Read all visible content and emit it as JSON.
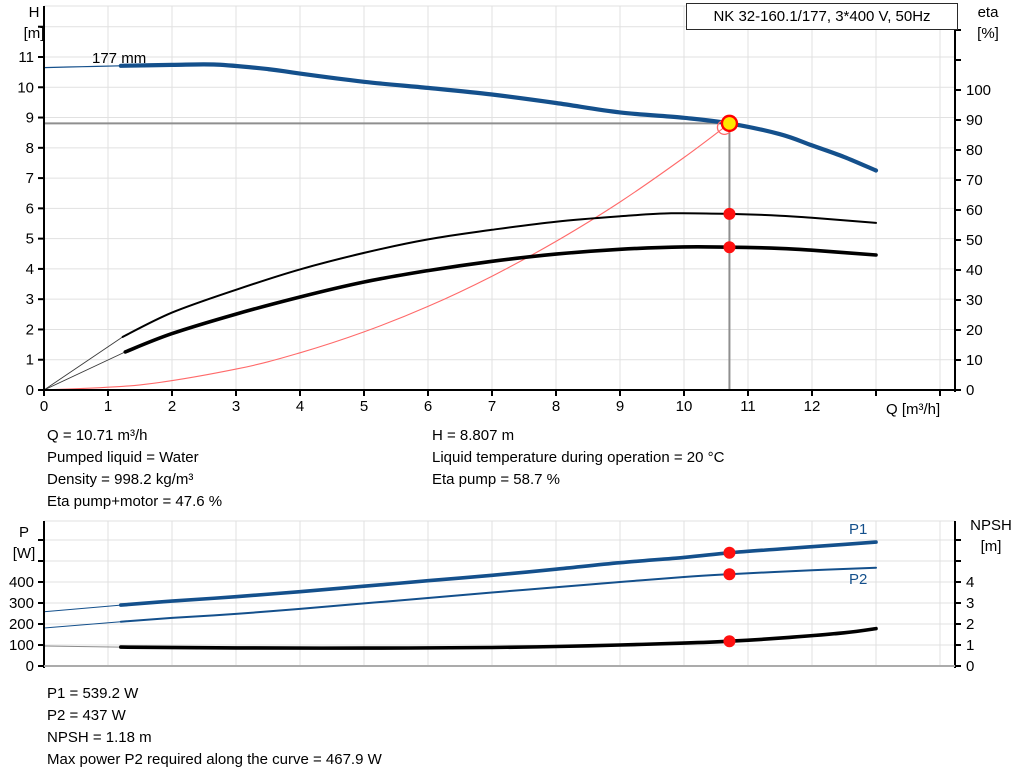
{
  "header": {
    "title": "NK 32-160.1/177, 3*400 V, 50Hz"
  },
  "top_chart": {
    "impeller_label": "177 mm",
    "left_axis_name": [
      "H",
      "[m]"
    ],
    "right_axis_name": [
      "eta",
      "[%]"
    ],
    "x_axis_name": "Q [m³/h]",
    "left_tick_labels": [
      "0",
      "1",
      "2",
      "3",
      "4",
      "5",
      "6",
      "7",
      "8",
      "9",
      "10",
      "11"
    ],
    "right_tick_labels": [
      "0",
      "10",
      "20",
      "30",
      "40",
      "50",
      "60",
      "70",
      "80",
      "90",
      "100"
    ],
    "x_tick_labels": [
      "0",
      "1",
      "2",
      "3",
      "4",
      "5",
      "6",
      "7",
      "8",
      "9",
      "10",
      "11",
      "12"
    ]
  },
  "top_info": {
    "col1": [
      "Q = 10.71 m³/h",
      "Pumped liquid = Water",
      "Density = 998.2 kg/m³",
      "Eta pump+motor = 47.6 %"
    ],
    "col2": [
      "H = 8.807 m",
      "Liquid temperature during operation = 20 °C",
      "Eta pump = 58.7 %"
    ]
  },
  "bottom_chart": {
    "left_axis_name": [
      "P",
      "[W]"
    ],
    "right_axis_name": [
      "NPSH",
      "[m]"
    ],
    "p1_label": "P1",
    "p2_label": "P2",
    "left_tick_labels": [
      "0",
      "100",
      "200",
      "300",
      "400"
    ],
    "right_tick_labels": [
      "0",
      "1",
      "2",
      "3",
      "4"
    ]
  },
  "bottom_info": [
    "P1 = 539.2 W",
    "P2 = 437 W",
    "NPSH = 1.18 m",
    "Max power P2 required along the curve = 467.9 W"
  ],
  "colors": {
    "curve_blue": "#14508C",
    "marker_red": "#FF1010",
    "op_yellow": "#FFE600",
    "op_ring_red": "#FF0000",
    "system_red": "#FF6A6A",
    "grid": "#E1E1E1",
    "crosshair": "#8F8F8F",
    "bottom_axis_gray": "#ABABAB",
    "lead_in_gray": "#3A3A3A"
  },
  "chart_data": [
    {
      "type": "line",
      "title": "NK 32-160.1/177, 3*400 V, 50Hz",
      "xlabel": "Q [m³/h]",
      "ylabel_left": "H [m]",
      "ylabel_right": "eta [%]",
      "xlim": [
        0,
        14.25
      ],
      "ylim_left": [
        0,
        12.7
      ],
      "ylim_right": [
        0,
        127
      ],
      "grid": true,
      "operating_point": {
        "Q": 10.71,
        "H": 8.807,
        "eta_pump": 58.7,
        "eta_pump_motor": 47.6
      },
      "crosshair": {
        "q": 10.71,
        "v": 8.807
      },
      "series": [
        {
          "name": "head-curve-lead-in",
          "axis": "left",
          "color": "#14508C",
          "width": 1.2,
          "points": [
            [
              0,
              10.65
            ],
            [
              0.6,
              10.68
            ],
            [
              1.2,
              10.71
            ]
          ]
        },
        {
          "name": "system-curve",
          "axis": "left",
          "color": "#FF6A6A",
          "width": 1.1,
          "points": [
            [
              0,
              0
            ],
            [
              1.5,
              0.17
            ],
            [
              3,
              0.69
            ],
            [
              4,
              1.23
            ],
            [
              5,
              1.92
            ],
            [
              6,
              2.76
            ],
            [
              7,
              3.76
            ],
            [
              8,
              4.91
            ],
            [
              9,
              6.21
            ],
            [
              10,
              7.68
            ],
            [
              10.71,
              8.807
            ]
          ]
        },
        {
          "name": "eta-pump-lead-in",
          "axis": "right",
          "color": "#3A3A3A",
          "width": 0.9,
          "points": [
            [
              0,
              0
            ],
            [
              1.23,
              17.7
            ]
          ]
        },
        {
          "name": "eta-pump-motor-lead-in",
          "axis": "right",
          "color": "#3A3A3A",
          "width": 0.9,
          "points": [
            [
              0,
              0
            ],
            [
              1.27,
              12.7
            ]
          ]
        },
        {
          "name": "eta-pump-curve",
          "axis": "right",
          "color": "#000000",
          "width": 2,
          "points": [
            [
              1.23,
              17.7
            ],
            [
              2,
              25.8
            ],
            [
              3,
              33.4
            ],
            [
              4,
              40.2
            ],
            [
              5,
              45.7
            ],
            [
              6,
              50.2
            ],
            [
              7,
              53.4
            ],
            [
              8,
              56.1
            ],
            [
              9,
              57.9
            ],
            [
              9.8,
              58.9
            ],
            [
              10.71,
              58.7
            ],
            [
              11.5,
              58.1
            ],
            [
              12,
              57.4
            ],
            [
              13,
              55.7
            ]
          ]
        },
        {
          "name": "eta-pump-motor-curve",
          "axis": "right",
          "color": "#000000",
          "width": 3.6,
          "points": [
            [
              1.27,
              12.7
            ],
            [
              2,
              18.8
            ],
            [
              3,
              25.3
            ],
            [
              4,
              31
            ],
            [
              5,
              36
            ],
            [
              6,
              39.8
            ],
            [
              7,
              42.9
            ],
            [
              8,
              45.3
            ],
            [
              9,
              46.9
            ],
            [
              10,
              47.7
            ],
            [
              10.71,
              47.6
            ],
            [
              11.5,
              47.2
            ],
            [
              12,
              46.6
            ],
            [
              13,
              45
            ]
          ]
        },
        {
          "name": "head-curve-177mm",
          "axis": "left",
          "color": "#14508C",
          "width": 4.2,
          "points": [
            [
              1.2,
              10.71
            ],
            [
              2,
              10.74
            ],
            [
              2.7,
              10.75
            ],
            [
              3.5,
              10.6
            ],
            [
              4,
              10.45
            ],
            [
              5,
              10.18
            ],
            [
              6,
              9.98
            ],
            [
              7,
              9.76
            ],
            [
              8,
              9.48
            ],
            [
              9,
              9.17
            ],
            [
              10,
              8.99
            ],
            [
              10.71,
              8.807
            ],
            [
              11.5,
              8.45
            ],
            [
              12,
              8.08
            ],
            [
              12.5,
              7.7
            ],
            [
              13,
              7.25
            ]
          ]
        }
      ],
      "markers": [
        {
          "name": "operating-point",
          "q": 10.71,
          "v": 8.807,
          "axis": "left",
          "kind": "op"
        },
        {
          "name": "eta-pump-duty-dot",
          "q": 10.71,
          "v": 58.7,
          "axis": "right",
          "kind": "dot"
        },
        {
          "name": "eta-pump-motor-duty-dot",
          "q": 10.71,
          "v": 47.6,
          "axis": "right",
          "kind": "dot"
        }
      ]
    },
    {
      "type": "line",
      "title": "Power and NPSH curves",
      "xlabel": "Q [m³/h]",
      "ylabel_left": "P [W]",
      "ylabel_right": "NPSH [m]",
      "xlim": [
        0,
        14.25
      ],
      "ylim_left": [
        0,
        690
      ],
      "ylim_right": [
        0,
        6.9
      ],
      "grid": true,
      "duty_values": {
        "P1_W": 539.2,
        "P2_W": 437,
        "NPSH_m": 1.18,
        "max_P2_along_curve_W": 467.9
      },
      "series": [
        {
          "name": "p1-curve-lead-in",
          "axis": "left",
          "color": "#14508C",
          "width": 1,
          "points": [
            [
              0,
              258
            ],
            [
              1.2,
              290
            ]
          ]
        },
        {
          "name": "p2-curve-lead-in",
          "axis": "left",
          "color": "#14508C",
          "width": 1,
          "points": [
            [
              0,
              181
            ],
            [
              1.2,
              211
            ]
          ]
        },
        {
          "name": "npsh-curve-lead-in",
          "axis": "right",
          "color": "#8C8C8C",
          "width": 1,
          "points": [
            [
              0,
              0.95
            ],
            [
              1.2,
              0.9
            ]
          ]
        },
        {
          "name": "p1-curve",
          "axis": "left",
          "color": "#14508C",
          "width": 3.6,
          "points": [
            [
              1.2,
              290
            ],
            [
              2,
              309
            ],
            [
              3,
              330
            ],
            [
              4,
              354
            ],
            [
              5,
              380
            ],
            [
              6,
              406
            ],
            [
              7,
              432
            ],
            [
              8,
              461
            ],
            [
              9,
              492
            ],
            [
              10,
              517
            ],
            [
              10.71,
              539.2
            ],
            [
              11.5,
              557
            ],
            [
              12.5,
              579
            ],
            [
              13,
              590
            ]
          ]
        },
        {
          "name": "p2-curve",
          "axis": "left",
          "color": "#14508C",
          "width": 2,
          "points": [
            [
              1.2,
              211
            ],
            [
              2,
              229
            ],
            [
              3,
              248
            ],
            [
              4,
              272
            ],
            [
              5,
              298
            ],
            [
              6,
              324
            ],
            [
              7,
              350
            ],
            [
              8,
              375
            ],
            [
              9,
              400
            ],
            [
              10,
              424
            ],
            [
              10.71,
              437
            ],
            [
              12,
              456
            ],
            [
              13,
              467.9
            ]
          ]
        },
        {
          "name": "npsh-curve",
          "axis": "right",
          "color": "#000000",
          "width": 3.6,
          "points": [
            [
              1.2,
              0.9
            ],
            [
              3,
              0.86
            ],
            [
              5,
              0.85
            ],
            [
              7,
              0.88
            ],
            [
              8,
              0.93
            ],
            [
              9,
              1
            ],
            [
              10,
              1.09
            ],
            [
              10.71,
              1.18
            ],
            [
              11.5,
              1.33
            ],
            [
              12.5,
              1.58
            ],
            [
              13,
              1.78
            ]
          ]
        }
      ],
      "markers": [
        {
          "name": "p1-duty-dot",
          "q": 10.71,
          "v": 539.2,
          "axis": "left",
          "kind": "dot"
        },
        {
          "name": "p2-duty-dot",
          "q": 10.71,
          "v": 437,
          "axis": "left",
          "kind": "dot"
        },
        {
          "name": "npsh-duty-dot",
          "q": 10.71,
          "v": 1.18,
          "axis": "right",
          "kind": "dot"
        }
      ]
    }
  ]
}
